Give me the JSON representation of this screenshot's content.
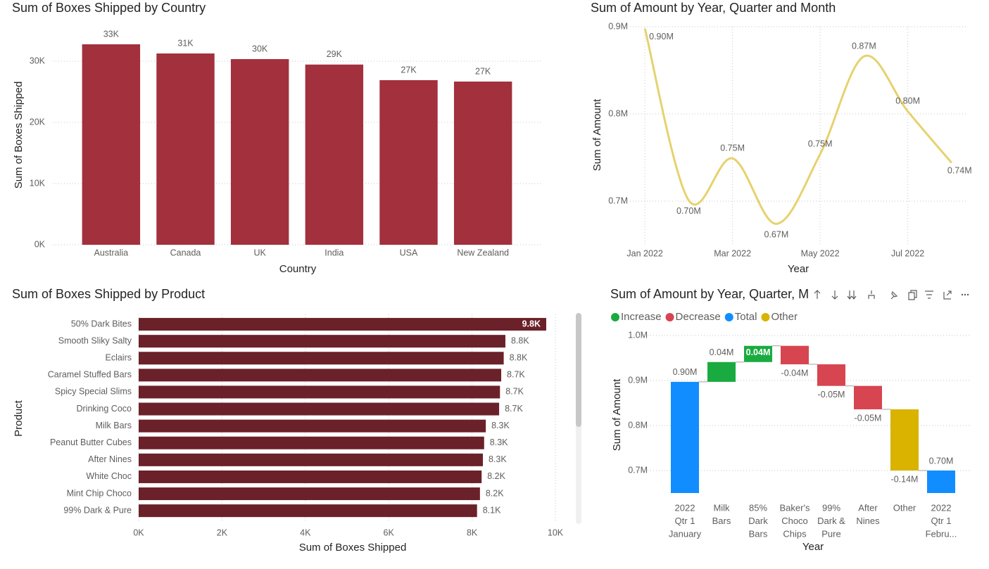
{
  "chart_data": [
    {
      "type": "bar",
      "title": "Sum of Boxes Shipped by Country",
      "x_label": "Country",
      "y_label": "Sum of Boxes Shipped",
      "categories": [
        "Australia",
        "Canada",
        "UK",
        "India",
        "USA",
        "New Zealand"
      ],
      "values": [
        32760,
        31260,
        30340,
        29450,
        26900,
        26670
      ],
      "value_labels": [
        "33K",
        "31K",
        "30K",
        "29K",
        "27K",
        "27K"
      ],
      "color": "#a2303d",
      "ylim": [
        0,
        35000
      ],
      "yticks": [
        {
          "value": 0,
          "label": "0K"
        },
        {
          "value": 10000,
          "label": "10K"
        },
        {
          "value": 20000,
          "label": "20K"
        },
        {
          "value": 30000,
          "label": "30K"
        }
      ],
      "grid": true
    },
    {
      "type": "line",
      "title": "Sum of Amount by Year, Quarter and Month",
      "x_label": "Year",
      "y_label": "Sum of Amount",
      "categories": [
        "Jan 2022",
        null,
        "Mar 2022",
        null,
        "May 2022",
        null,
        "Jul 2022",
        null
      ],
      "values": [
        0.898,
        0.701,
        0.749,
        0.674,
        0.754,
        0.866,
        0.803,
        0.744
      ],
      "value_labels": [
        "0.90M",
        "0.70M",
        "0.75M",
        "0.67M",
        "0.75M",
        "0.87M",
        "0.80M",
        "0.74M"
      ],
      "color": "#e6d26e",
      "ylim": [
        0.65,
        0.9
      ],
      "yticks": [
        {
          "value": 0.7,
          "label": "0.7M"
        },
        {
          "value": 0.8,
          "label": "0.8M"
        },
        {
          "value": 0.9,
          "label": "0.9M"
        }
      ],
      "grid": true
    },
    {
      "type": "hbar",
      "title": "Sum of Boxes Shipped by Product",
      "x_label": "Sum of Boxes Shipped",
      "y_label": "Product",
      "categories": [
        "50% Dark Bites",
        "Smooth Sliky Salty",
        "Eclairs",
        "Caramel Stuffed Bars",
        "Spicy Special Slims",
        "Drinking Coco",
        "Milk Bars",
        "Peanut Butter Cubes",
        "After Nines",
        "White Choc",
        "Mint Chip Choco",
        "99% Dark & Pure"
      ],
      "values": [
        9780,
        8800,
        8760,
        8700,
        8670,
        8650,
        8330,
        8290,
        8260,
        8230,
        8190,
        8120
      ],
      "value_labels": [
        "9.8K",
        "8.8K",
        "8.8K",
        "8.7K",
        "8.7K",
        "8.7K",
        "8.3K",
        "8.3K",
        "8.3K",
        "8.2K",
        "8.2K",
        "8.1K"
      ],
      "color": "#6b2129",
      "xlim": [
        0,
        10000
      ],
      "xticks": [
        {
          "value": 0,
          "label": "0K"
        },
        {
          "value": 2000,
          "label": "2K"
        },
        {
          "value": 4000,
          "label": "4K"
        },
        {
          "value": 6000,
          "label": "6K"
        },
        {
          "value": 8000,
          "label": "8K"
        },
        {
          "value": 10000,
          "label": "10K"
        }
      ],
      "grid": true
    },
    {
      "type": "waterfall",
      "title": "Sum of Amount by Year, Quarter, M",
      "x_label": "Year",
      "y_label": "Sum of Amount",
      "legend": [
        {
          "name": "Increase",
          "color": "#1aab40"
        },
        {
          "name": "Decrease",
          "color": "#d64550"
        },
        {
          "name": "Total",
          "color": "#118dff"
        },
        {
          "name": "Other",
          "color": "#d9b300"
        }
      ],
      "categories": [
        [
          "2022",
          "Qtr 1",
          "January"
        ],
        [
          "Milk",
          "Bars"
        ],
        [
          "85%",
          "Dark",
          "Bars"
        ],
        [
          "Baker's",
          "Choco",
          "Chips"
        ],
        [
          "99%",
          "Dark &",
          "Pure"
        ],
        [
          "After",
          "Nines"
        ],
        [
          "Other"
        ],
        [
          "2022",
          "Qtr 1",
          "Febru..."
        ]
      ],
      "kinds": [
        "Total",
        "Increase",
        "Increase",
        "Decrease",
        "Decrease",
        "Decrease",
        "Other",
        "Total"
      ],
      "values": [
        0.897,
        0.044,
        0.036,
        -0.041,
        -0.048,
        -0.052,
        -0.136,
        0.7
      ],
      "value_labels": [
        "0.90M",
        "0.04M",
        "0.04M",
        "-0.04M",
        "-0.05M",
        "-0.05M",
        "-0.14M",
        "0.70M"
      ],
      "ylim": [
        0.65,
        1.0
      ],
      "yticks": [
        {
          "value": 0.7,
          "label": "0.7M"
        },
        {
          "value": 0.8,
          "label": "0.8M"
        },
        {
          "value": 0.9,
          "label": "0.9M"
        },
        {
          "value": 1.0,
          "label": "1.0M"
        }
      ],
      "grid": true
    }
  ]
}
